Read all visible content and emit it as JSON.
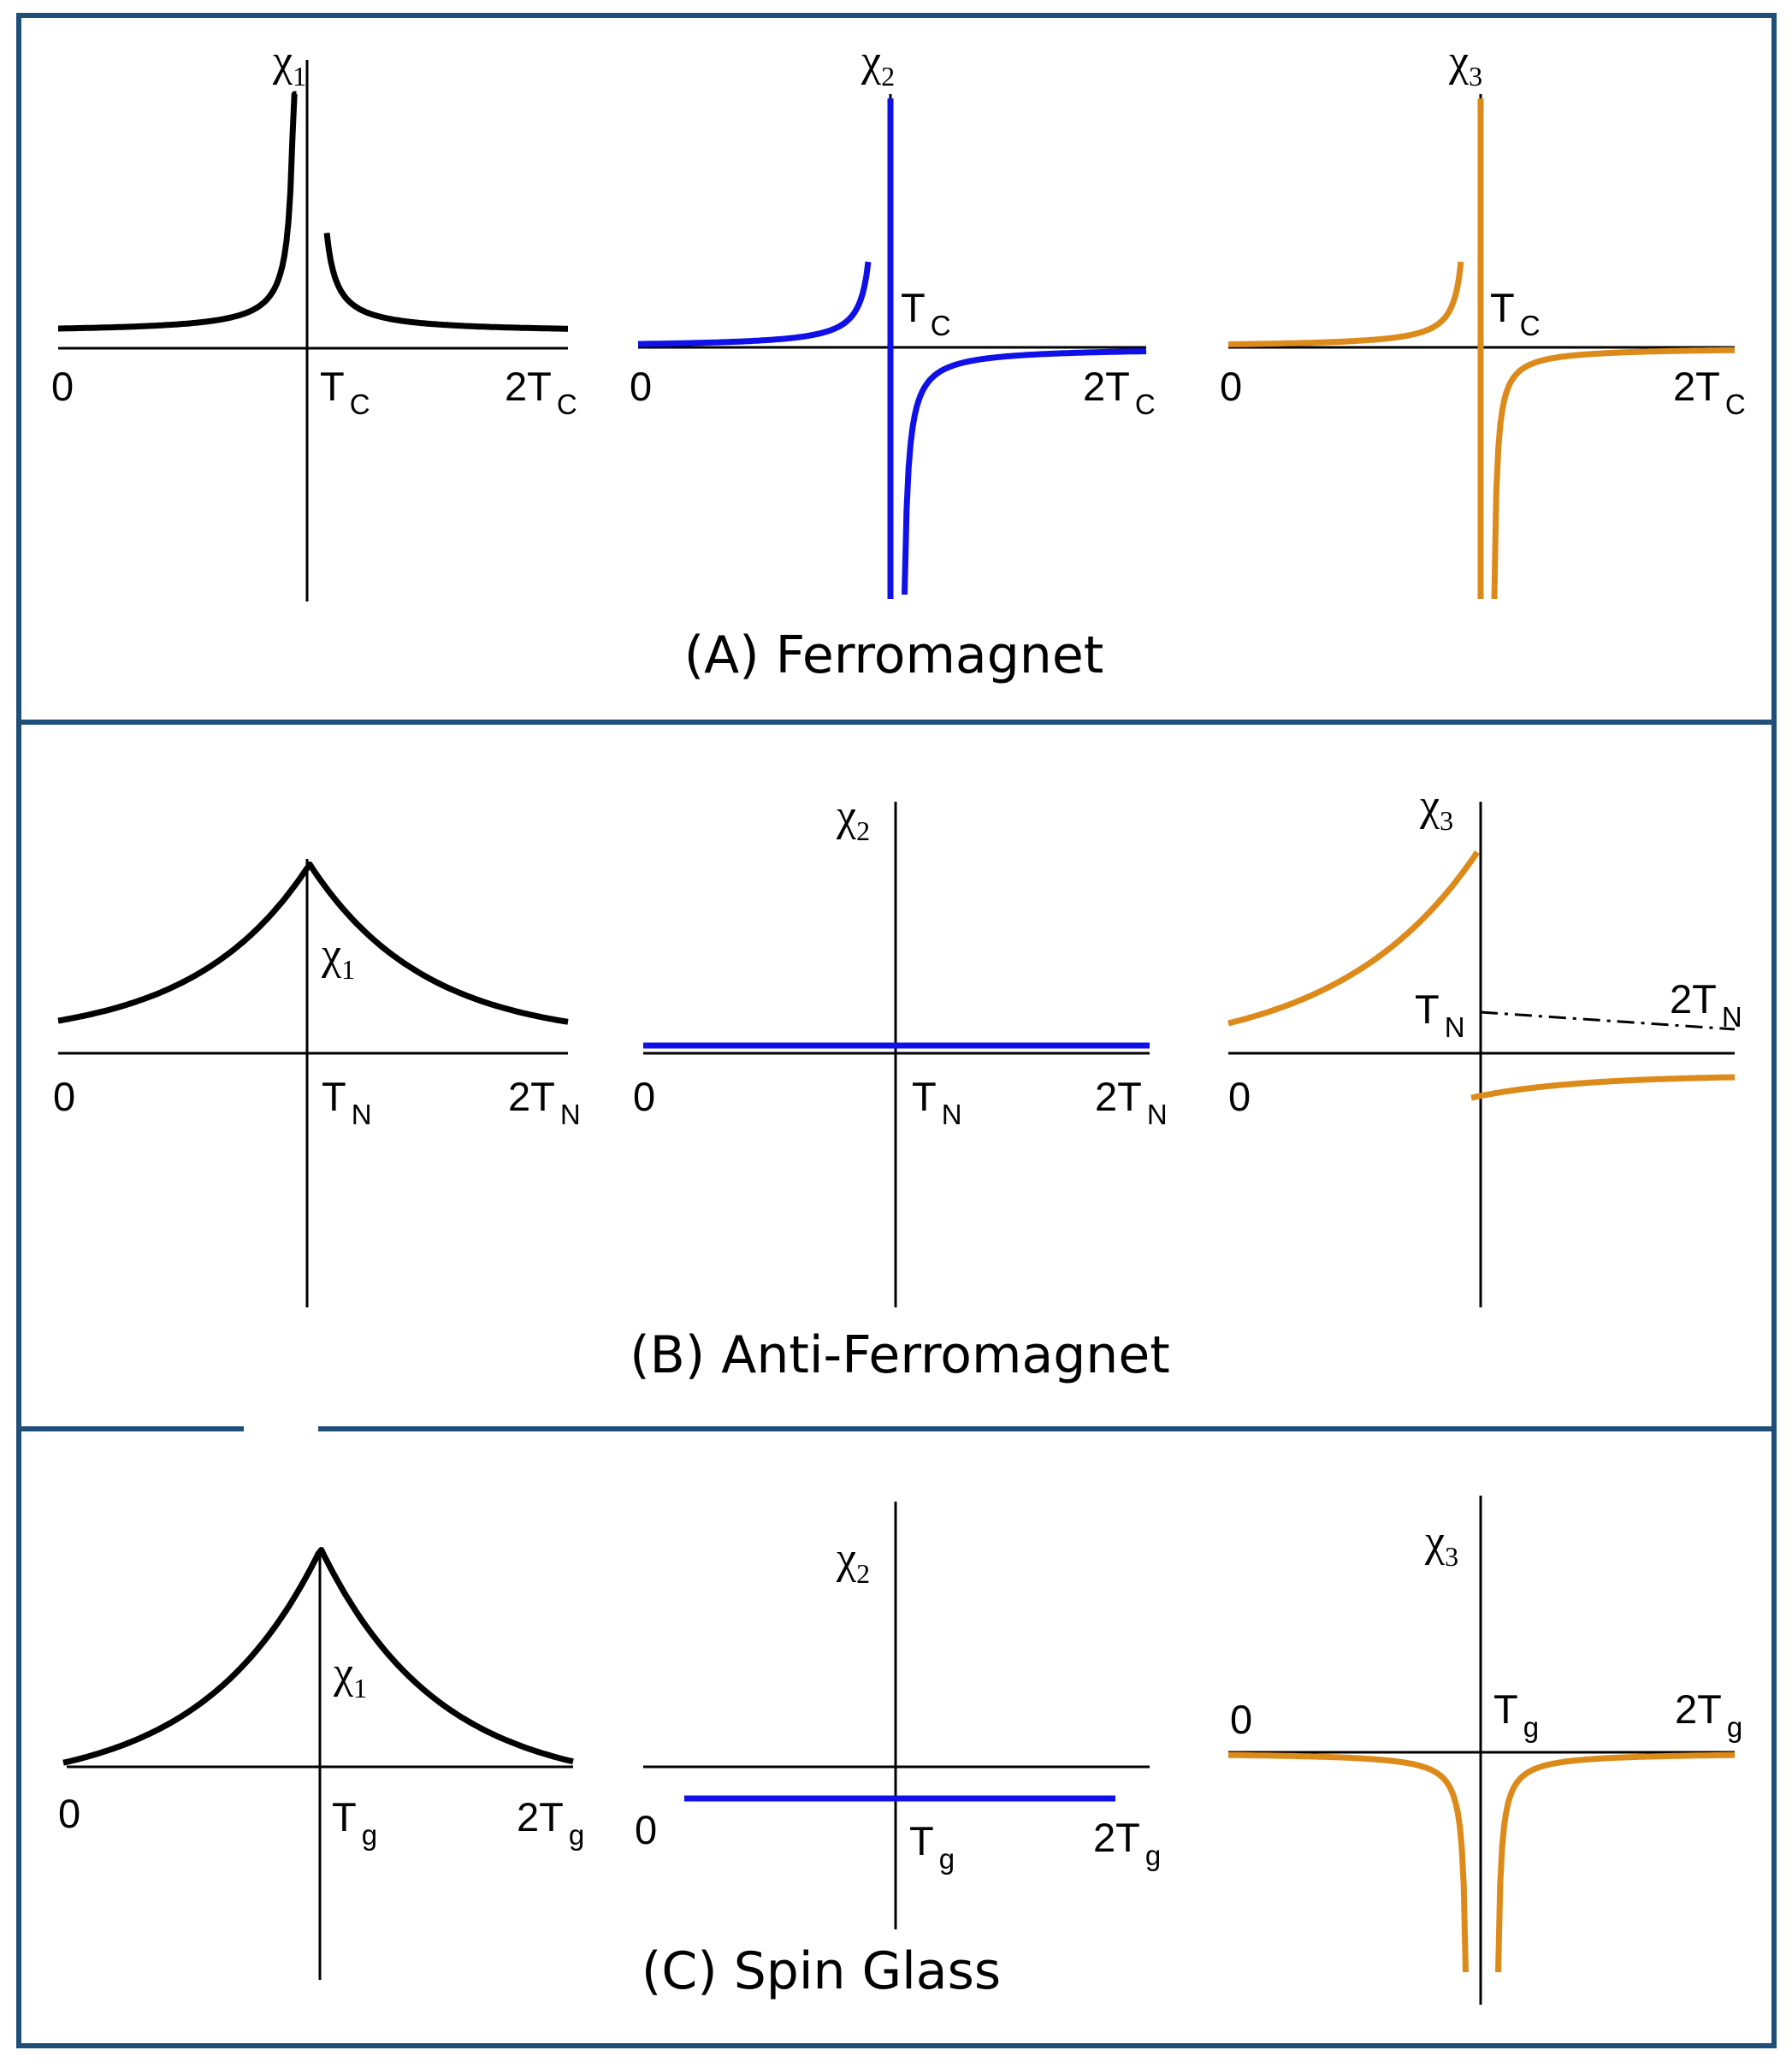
{
  "colors": {
    "border": "#1f4e79",
    "chi1": "#000000",
    "chi2": "#1010e8",
    "chi3": "#dc8a1a"
  },
  "panels": [
    {
      "title": "(A) Ferromagnet",
      "plots": [
        {
          "symbol": "χ",
          "index": "1",
          "zero_label": "0",
          "t_label": "T",
          "t_sub": "C",
          "end_label": "2T",
          "end_sub": "C"
        },
        {
          "symbol": "χ",
          "index": "2",
          "zero_label": "0",
          "t_label": "T",
          "t_sub": "C",
          "end_label": "2T",
          "end_sub": "C"
        },
        {
          "symbol": "χ",
          "index": "3",
          "zero_label": "0",
          "t_label": "T",
          "t_sub": "C",
          "end_label": "2T",
          "end_sub": "C"
        }
      ]
    },
    {
      "title": "(B) Anti-Ferromagnet",
      "plots": [
        {
          "symbol": "χ",
          "index": "1",
          "zero_label": "0",
          "t_label": "T",
          "t_sub": "N",
          "end_label": "2T",
          "end_sub": "N"
        },
        {
          "symbol": "χ",
          "index": "2",
          "zero_label": "0",
          "t_label": "T",
          "t_sub": "N",
          "end_label": "2T",
          "end_sub": "N"
        },
        {
          "symbol": "χ",
          "index": "3",
          "zero_label": "0",
          "t_label": "T",
          "t_sub": "N",
          "end_label": "2T",
          "end_sub": "N"
        }
      ]
    },
    {
      "title": "(C) Spin Glass",
      "plots": [
        {
          "symbol": "χ",
          "index": "1",
          "zero_label": "0",
          "t_label": "T",
          "t_sub": "g",
          "end_label": "2T",
          "end_sub": "g"
        },
        {
          "symbol": "χ",
          "index": "2",
          "zero_label": "0",
          "t_label": "T",
          "t_sub": "g",
          "end_label": "2T",
          "end_sub": "g"
        },
        {
          "symbol": "χ",
          "index": "3",
          "zero_label": "0",
          "t_label": "T",
          "t_sub": "g",
          "end_label": "2T",
          "end_sub": "g"
        }
      ]
    }
  ]
}
